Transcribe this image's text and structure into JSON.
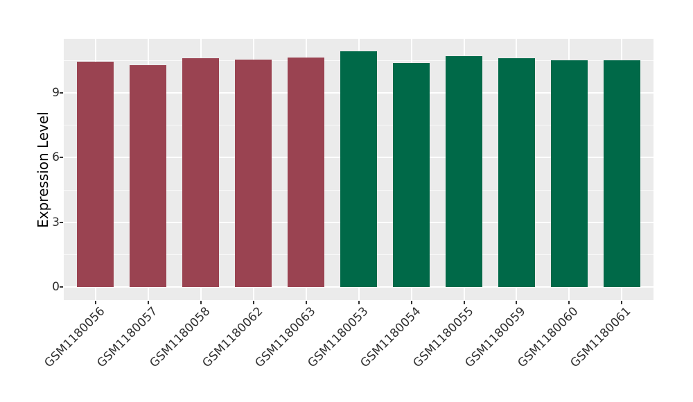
{
  "figure": {
    "background": "#FFFFFF",
    "panel_background": "#EBEBEB",
    "grid_color": "#FFFFFF",
    "tick_mark_color": "#333333",
    "tick_label_color": "#303030",
    "axis_title_color": "#000000"
  },
  "chart_data": {
    "type": "bar",
    "title": "",
    "xlabel": "",
    "ylabel": "Expression Level",
    "categories": [
      "GSM1180056",
      "GSM1180057",
      "GSM1180058",
      "GSM1180062",
      "GSM1180063",
      "GSM1180053",
      "GSM1180054",
      "GSM1180055",
      "GSM1180059",
      "GSM1180060",
      "GSM1180061"
    ],
    "values": [
      10.45,
      10.3,
      10.6,
      10.55,
      10.65,
      10.95,
      10.4,
      10.7,
      10.6,
      10.5,
      10.5
    ],
    "bar_colors": [
      "#9A4351",
      "#9A4351",
      "#9A4351",
      "#9A4351",
      "#9A4351",
      "#006948",
      "#006948",
      "#006948",
      "#006948",
      "#006948",
      "#006948"
    ],
    "groups": [
      {
        "color": "#9A4351",
        "samples": [
          "GSM1180056",
          "GSM1180057",
          "GSM1180058",
          "GSM1180062",
          "GSM1180063"
        ]
      },
      {
        "color": "#006948",
        "samples": [
          "GSM1180053",
          "GSM1180054",
          "GSM1180055",
          "GSM1180059",
          "GSM1180060",
          "GSM1180061"
        ]
      }
    ],
    "y_ticks": [
      0,
      3,
      6,
      9
    ],
    "y_minor_ticks": [
      1.5,
      4.5,
      7.5,
      10.5
    ],
    "ylim": [
      0,
      11.5
    ],
    "x_tick_rotation_deg": 45,
    "legend": "none",
    "grid": "on"
  }
}
